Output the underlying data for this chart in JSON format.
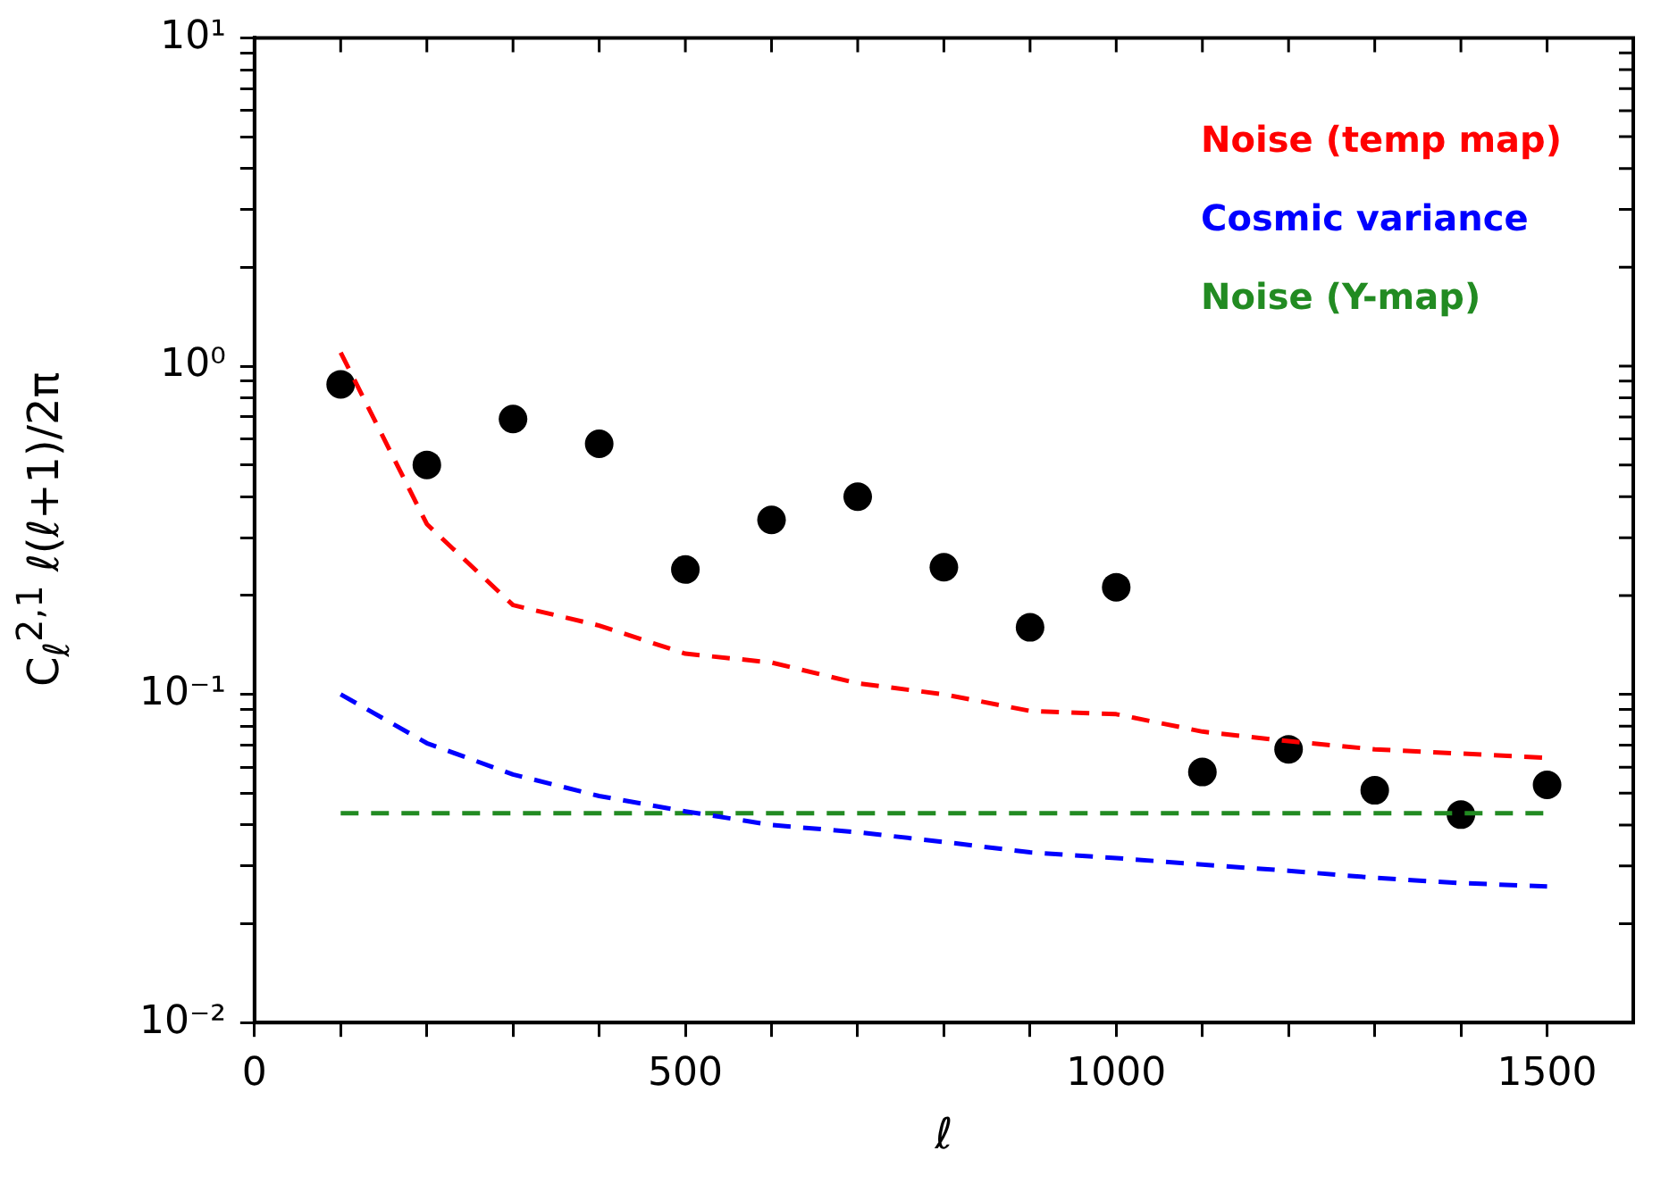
{
  "chart_data": {
    "type": "line",
    "xlabel": "ℓ",
    "ylabel": "C$_{ℓ}$$^{2,1}$ ℓ(ℓ+1)/2π",
    "x": [
      100,
      200,
      300,
      400,
      500,
      600,
      700,
      800,
      900,
      1000,
      1100,
      1200,
      1300,
      1400,
      1500
    ],
    "series": [
      {
        "name": "Noise (temp map)",
        "color": "#ff0000",
        "line_style": "dashed",
        "marker": "none",
        "values": [
          1.1,
          0.33,
          0.187,
          0.162,
          0.133,
          0.125,
          0.108,
          0.1,
          0.089,
          0.087,
          0.077,
          0.072,
          0.068,
          0.066,
          0.064
        ]
      },
      {
        "name": "Cosmic variance",
        "color": "#0000ff",
        "line_style": "dashed",
        "marker": "none",
        "values": [
          0.1,
          0.071,
          0.057,
          0.049,
          0.044,
          0.04,
          0.038,
          0.0355,
          0.033,
          0.0317,
          0.0303,
          0.029,
          0.0276,
          0.0266,
          0.026
        ]
      },
      {
        "name": "Noise (Y-map)",
        "color": "#228b22",
        "line_style": "dashed",
        "marker": "none",
        "values": [
          0.0434,
          0.0434,
          0.0434,
          0.0434,
          0.0434,
          0.0434,
          0.0434,
          0.0434,
          0.0434,
          0.0434,
          0.0434,
          0.0434,
          0.0434,
          0.0434,
          0.0434
        ]
      },
      {
        "type": "scatter",
        "color": "#000000",
        "marker": "circle",
        "values": [
          0.88,
          0.5,
          0.69,
          0.58,
          0.24,
          0.34,
          0.4,
          0.244,
          0.16,
          0.212,
          0.058,
          0.068,
          0.051,
          0.043,
          0.053
        ]
      }
    ],
    "log": "y",
    "xlim": [
      0,
      1600
    ],
    "ylim": [
      0.01,
      10
    ],
    "xticks": [
      0,
      {
        "value": 100,
        "label": null
      },
      {
        "value": 200,
        "label": null
      },
      {
        "value": 300,
        "label": null
      },
      {
        "value": 400,
        "label": null
      },
      500,
      {
        "value": 600,
        "label": null
      },
      {
        "value": 700,
        "label": null
      },
      {
        "value": 800,
        "label": null
      },
      {
        "value": 900,
        "label": null
      },
      1000,
      {
        "value": 1100,
        "label": null
      },
      {
        "value": 1200,
        "label": null
      },
      {
        "value": 1300,
        "label": null
      },
      {
        "value": 1400,
        "label": null
      },
      1500
    ],
    "yticks": [
      {
        "value": 0.01,
        "label": "10⁻²"
      },
      {
        "value": 0.02,
        "label": null
      },
      {
        "value": 0.03,
        "label": null
      },
      {
        "value": 0.04,
        "label": null
      },
      {
        "value": 0.05,
        "label": null
      },
      {
        "value": 0.06,
        "label": null
      },
      {
        "value": 0.07,
        "label": null
      },
      {
        "value": 0.08,
        "label": null
      },
      {
        "value": 0.09,
        "label": null
      },
      {
        "value": 0.1,
        "label": "10⁻¹"
      },
      {
        "value": 0.2,
        "label": null
      },
      {
        "value": 0.3,
        "label": null
      },
      {
        "value": 0.4,
        "label": null
      },
      {
        "value": 0.5,
        "label": null
      },
      {
        "value": 0.6,
        "label": null
      },
      {
        "value": 0.7,
        "label": null
      },
      {
        "value": 0.8,
        "label": null
      },
      {
        "value": 0.9,
        "label": null
      },
      {
        "value": 1,
        "label": "10⁰"
      },
      {
        "value": 2,
        "label": null
      },
      {
        "value": 3,
        "label": null
      },
      {
        "value": 4,
        "label": null
      },
      {
        "value": 5,
        "label": null
      },
      {
        "value": 6,
        "label": null
      },
      {
        "value": 7,
        "label": null
      },
      {
        "value": 8,
        "label": null
      },
      {
        "value": 9,
        "label": null
      },
      {
        "value": 10,
        "label": "10¹"
      }
    ],
    "grid": false,
    "legend": "top right"
  }
}
